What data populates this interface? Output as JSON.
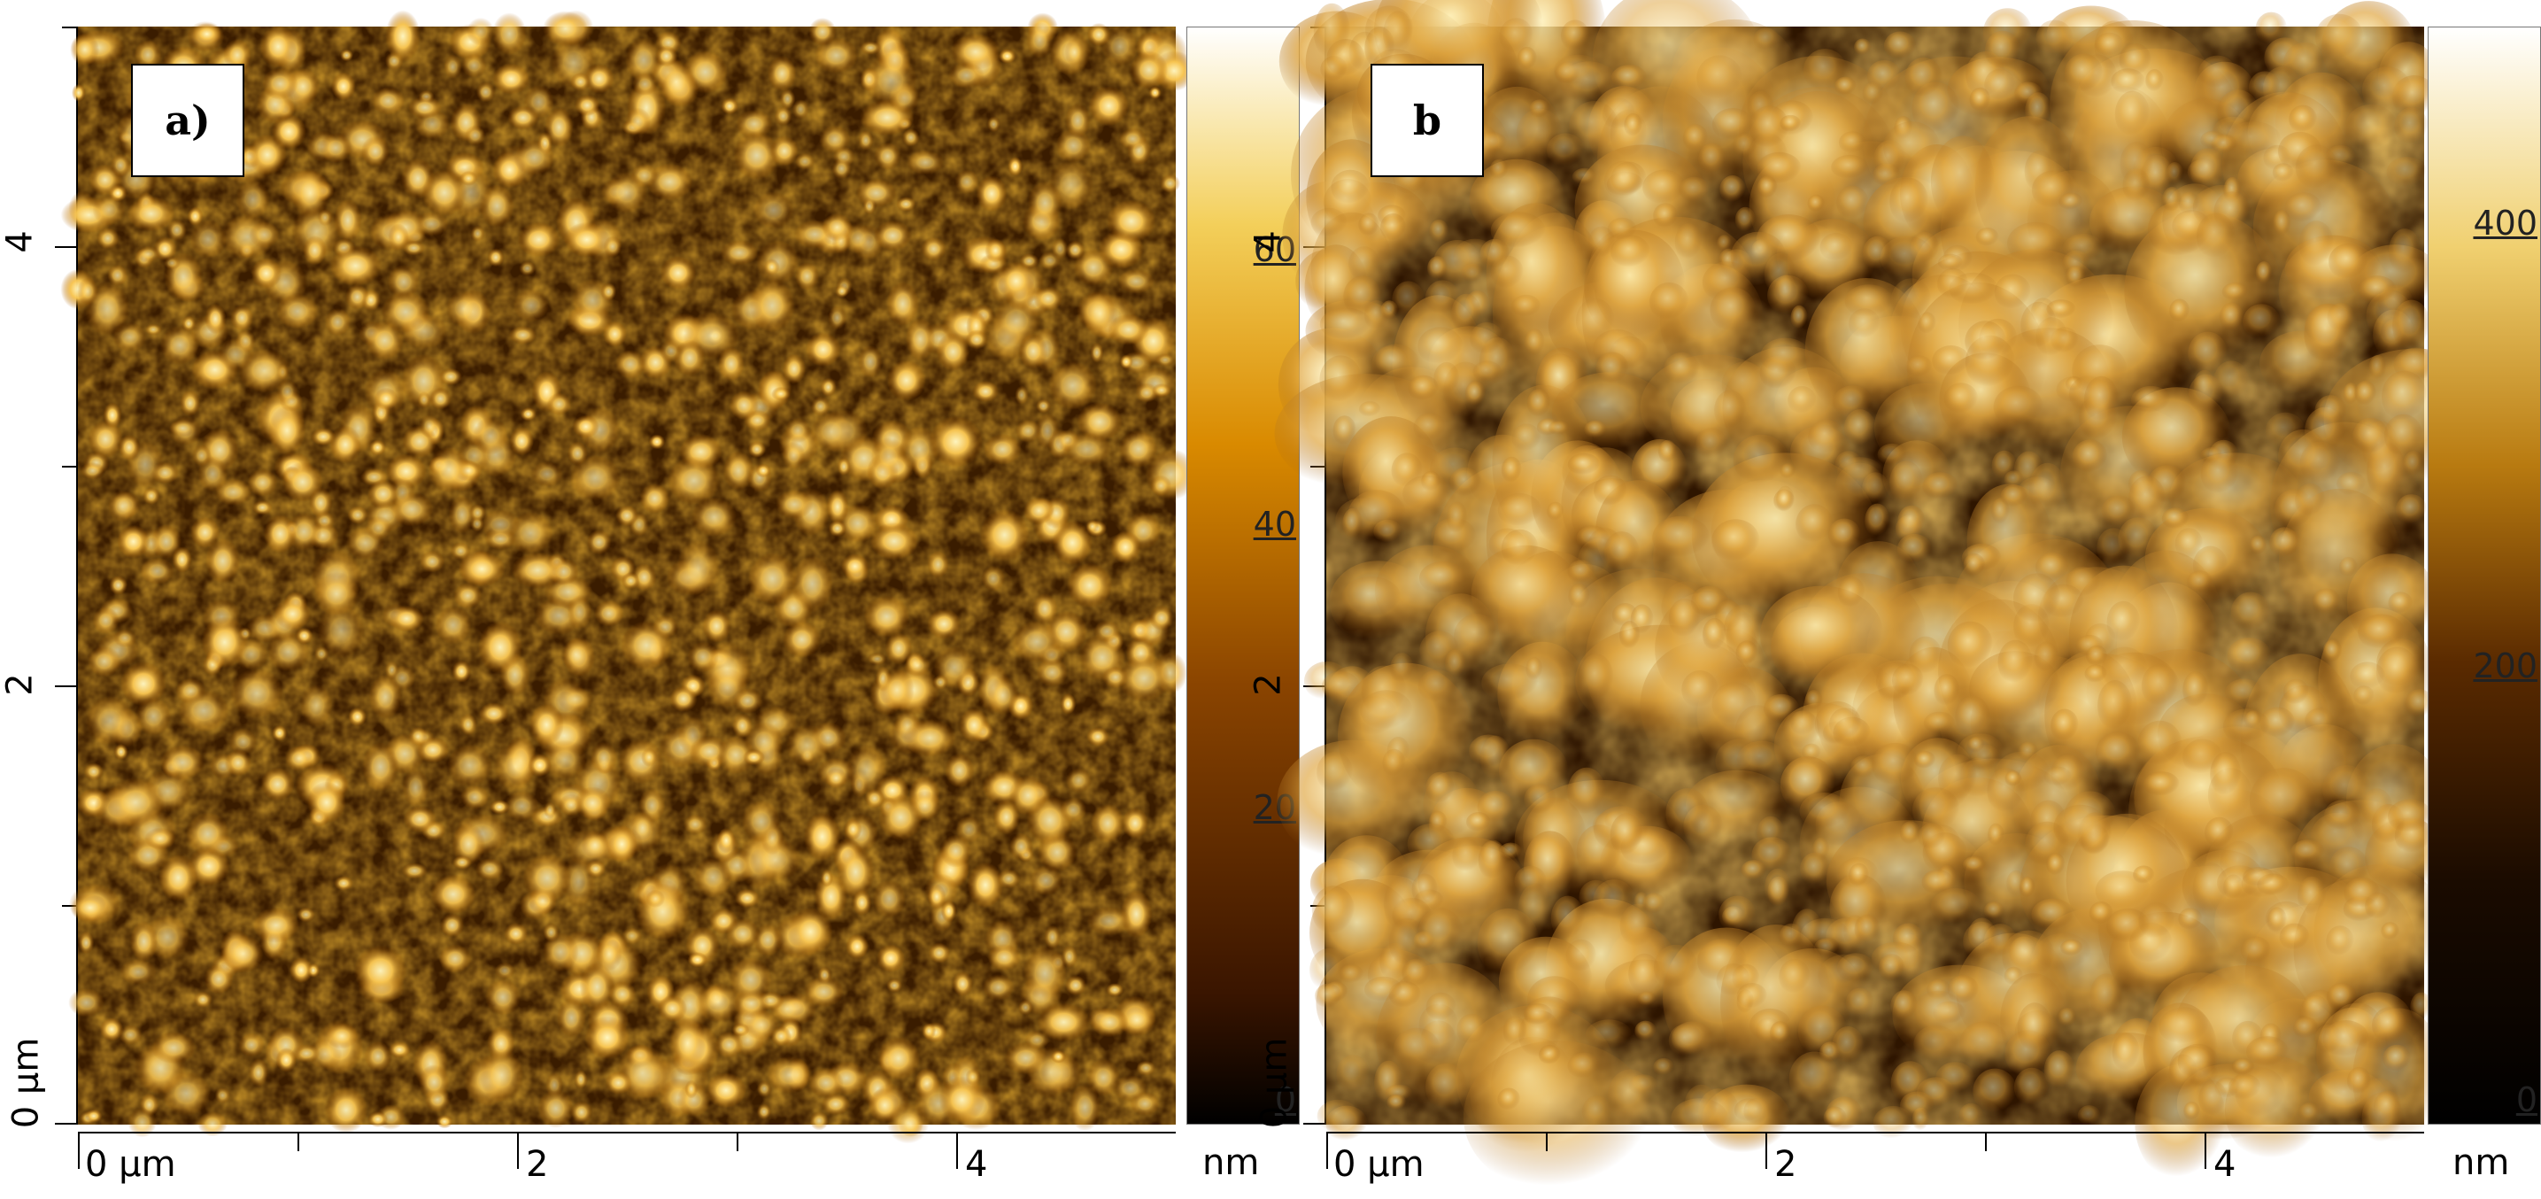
{
  "panels": [
    {
      "label": "a)",
      "scale_ticks": [
        "60",
        "40",
        "20",
        "0"
      ],
      "scale_unit": "nm",
      "x_ticks": [
        "0 µm",
        "2",
        "4"
      ],
      "y_ticks": [
        "4",
        "2",
        "0 µm"
      ],
      "colors": {
        "dark": "#2a1200",
        "mid": "#a85a00",
        "bright": "#ffe27a"
      }
    },
    {
      "label": "b",
      "scale_ticks": [
        "400",
        "200",
        "0"
      ],
      "scale_unit": "nm",
      "x_ticks": [
        "0 µm",
        "2",
        "4"
      ],
      "y_ticks": [
        "4",
        "2",
        "0 µm"
      ],
      "colors": {
        "dark": "#3a1e00",
        "mid": "#c88420",
        "bright": "#fff0b0"
      }
    }
  ]
}
